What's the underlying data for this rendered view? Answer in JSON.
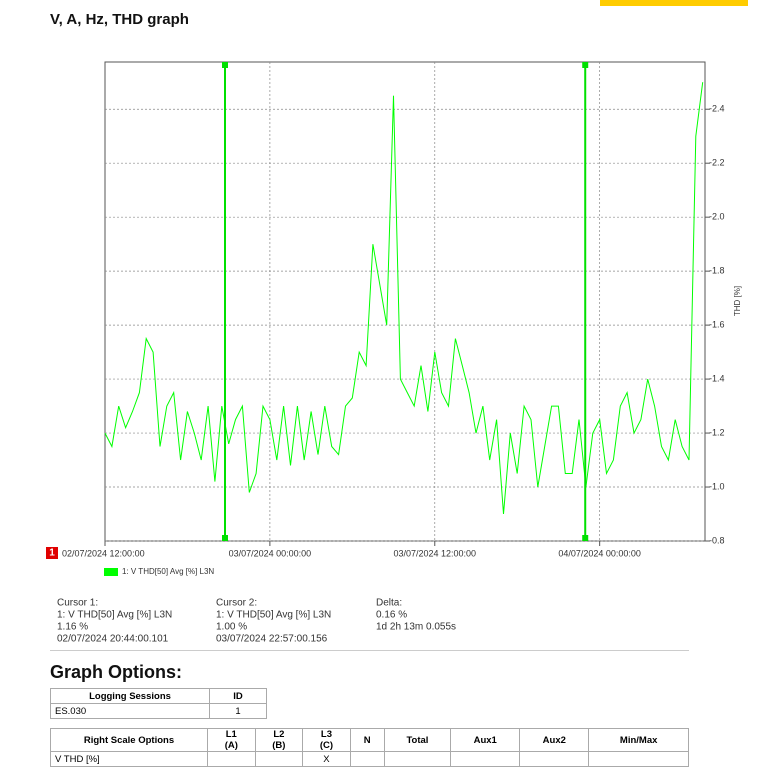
{
  "header": {
    "title": "V, A, Hz, THD graph"
  },
  "chart_data": {
    "type": "line",
    "y_label": "THD [%]",
    "session_marker": "1",
    "xlim": [
      "02/07/2024 12:00:00",
      "04/07/2024 07:40:00"
    ],
    "xticks": [
      "02/07/2024 12:00:00",
      "03/07/2024 00:00:00",
      "03/07/2024 12:00:00",
      "04/07/2024 00:00:00"
    ],
    "ylim": [
      0.8,
      2.575
    ],
    "yticks": [
      0.8,
      1.0,
      1.2,
      1.4,
      1.6,
      1.8,
      2.0,
      2.2,
      2.4
    ],
    "grid": true,
    "x": [
      "02/07/2024 12:00:00",
      "02/07/2024 12:30:00",
      "02/07/2024 13:00:00",
      "02/07/2024 13:30:00",
      "02/07/2024 14:00:00",
      "02/07/2024 14:30:00",
      "02/07/2024 15:00:00",
      "02/07/2024 15:30:00",
      "02/07/2024 16:00:00",
      "02/07/2024 16:30:00",
      "02/07/2024 17:00:00",
      "02/07/2024 17:30:00",
      "02/07/2024 18:00:00",
      "02/07/2024 18:30:00",
      "02/07/2024 19:00:00",
      "02/07/2024 19:30:00",
      "02/07/2024 20:00:00",
      "02/07/2024 20:30:00",
      "02/07/2024 21:00:00",
      "02/07/2024 21:30:00",
      "02/07/2024 22:00:00",
      "02/07/2024 22:30:00",
      "02/07/2024 23:00:00",
      "02/07/2024 23:30:00",
      "03/07/2024 00:00:00",
      "03/07/2024 00:30:00",
      "03/07/2024 01:00:00",
      "03/07/2024 01:30:00",
      "03/07/2024 02:00:00",
      "03/07/2024 02:30:00",
      "03/07/2024 03:00:00",
      "03/07/2024 03:30:00",
      "03/07/2024 04:00:00",
      "03/07/2024 04:30:00",
      "03/07/2024 05:00:00",
      "03/07/2024 05:30:00",
      "03/07/2024 06:00:00",
      "03/07/2024 06:30:00",
      "03/07/2024 07:00:00",
      "03/07/2024 07:30:00",
      "03/07/2024 08:00:00",
      "03/07/2024 08:30:00",
      "03/07/2024 09:00:00",
      "03/07/2024 09:30:00",
      "03/07/2024 10:00:00",
      "03/07/2024 10:30:00",
      "03/07/2024 11:00:00",
      "03/07/2024 11:30:00",
      "03/07/2024 12:00:00",
      "03/07/2024 12:30:00",
      "03/07/2024 13:00:00",
      "03/07/2024 13:30:00",
      "03/07/2024 14:00:00",
      "03/07/2024 14:30:00",
      "03/07/2024 15:00:00",
      "03/07/2024 15:30:00",
      "03/07/2024 16:00:00",
      "03/07/2024 16:30:00",
      "03/07/2024 17:00:00",
      "03/07/2024 17:30:00",
      "03/07/2024 18:00:00",
      "03/07/2024 18:30:00",
      "03/07/2024 19:00:00",
      "03/07/2024 19:30:00",
      "03/07/2024 20:00:00",
      "03/07/2024 20:30:00",
      "03/07/2024 21:00:00",
      "03/07/2024 21:30:00",
      "03/07/2024 22:00:00",
      "03/07/2024 22:30:00",
      "03/07/2024 23:00:00",
      "03/07/2024 23:30:00",
      "04/07/2024 00:00:00",
      "04/07/2024 00:30:00",
      "04/07/2024 01:00:00",
      "04/07/2024 01:30:00",
      "04/07/2024 02:00:00",
      "04/07/2024 02:30:00",
      "04/07/2024 03:00:00",
      "04/07/2024 03:30:00",
      "04/07/2024 04:00:00",
      "04/07/2024 04:30:00",
      "04/07/2024 05:00:00",
      "04/07/2024 05:30:00",
      "04/07/2024 06:00:00",
      "04/07/2024 06:30:00",
      "04/07/2024 07:00:00",
      "04/07/2024 07:30:00"
    ],
    "series": [
      {
        "name": "1: V THD[50] Avg [%] L3N",
        "color": "#00ff00",
        "values": [
          1.2,
          1.15,
          1.3,
          1.22,
          1.28,
          1.35,
          1.55,
          1.5,
          1.15,
          1.3,
          1.35,
          1.1,
          1.28,
          1.2,
          1.1,
          1.3,
          1.02,
          1.3,
          1.16,
          1.25,
          1.3,
          0.98,
          1.05,
          1.3,
          1.25,
          1.1,
          1.3,
          1.08,
          1.3,
          1.1,
          1.28,
          1.12,
          1.3,
          1.15,
          1.12,
          1.3,
          1.33,
          1.5,
          1.45,
          1.9,
          1.75,
          1.6,
          2.45,
          1.4,
          1.35,
          1.3,
          1.45,
          1.28,
          1.5,
          1.35,
          1.3,
          1.55,
          1.45,
          1.35,
          1.2,
          1.3,
          1.1,
          1.25,
          0.9,
          1.2,
          1.05,
          1.3,
          1.25,
          1.0,
          1.15,
          1.3,
          1.3,
          1.05,
          1.05,
          1.25,
          1.0,
          1.2,
          1.25,
          1.05,
          1.1,
          1.3,
          1.35,
          1.2,
          1.25,
          1.4,
          1.3,
          1.15,
          1.1,
          1.25,
          1.15,
          1.1,
          2.3,
          2.5
        ]
      }
    ],
    "cursors": [
      {
        "title": "Cursor 1:",
        "series": "1: V THD[50] Avg [%] L3N",
        "value": "1.16 %",
        "time": "02/07/2024 20:44:00.101"
      },
      {
        "title": "Cursor 2:",
        "series": "1: V THD[50] Avg [%] L3N",
        "value": "1.00 %",
        "time": "03/07/2024 22:57:00.156"
      }
    ],
    "delta": {
      "title": "Delta:",
      "value": "0.16 %",
      "span": "1d 2h 13m 0.055s"
    }
  },
  "options": {
    "title": "Graph Options:",
    "sessions": {
      "header": [
        "Logging Sessions",
        "ID"
      ],
      "rows": [
        [
          "ES.030",
          "1"
        ]
      ]
    },
    "scale": {
      "header": [
        "Right Scale Options",
        "L1\n(A)",
        "L2\n(B)",
        "L3\n(C)",
        "N",
        "Total",
        "Aux1",
        "Aux2",
        "Min/Max"
      ],
      "rows": [
        [
          "V THD [%]",
          null,
          null,
          "X",
          null,
          null,
          null,
          null,
          null
        ]
      ]
    }
  }
}
